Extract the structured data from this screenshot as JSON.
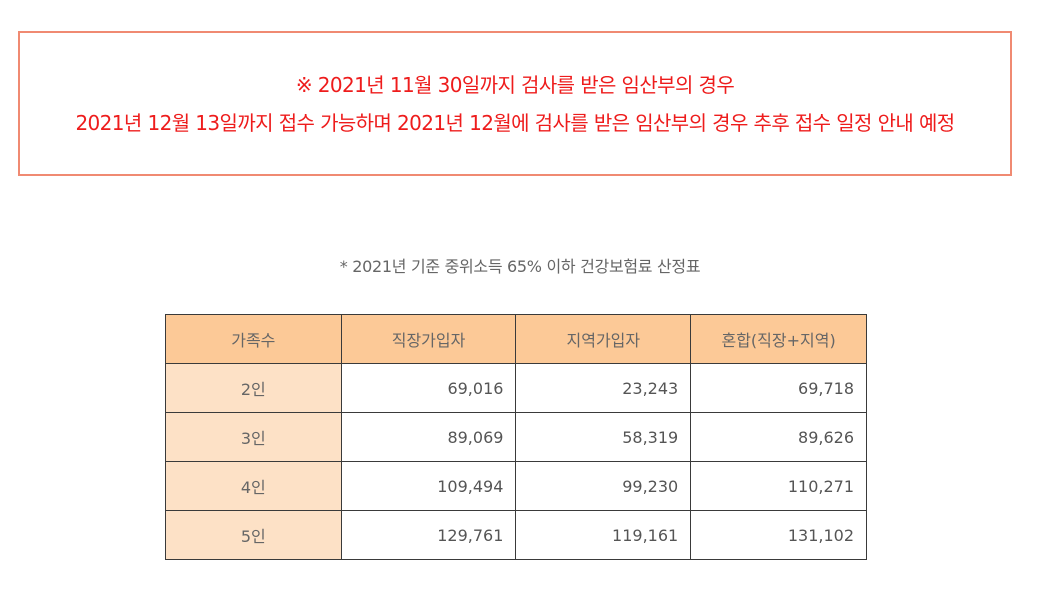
{
  "notice": {
    "line1": "※ 2021년 11월 30일까지 검사를 받은 임산부의 경우",
    "line2": "2021년 12월 13일까지 접수 가능하며 2021년 12월에 검사를 받은 임산부의 경우 추후 접수 일정 안내 예정",
    "text_color": "#ee1c1c",
    "border_color": "#f08a72"
  },
  "table_caption": "* 2021년 기준 중위소득 65% 이하 건강보험료 산정표",
  "table": {
    "header_color": "#fcc997",
    "first_col_color": "#fde1c6",
    "headers": [
      "가족수",
      "직장가입자",
      "지역가입자",
      "혼합(직장+지역)"
    ],
    "rows": [
      [
        "2인",
        "69,016",
        "23,243",
        "69,718"
      ],
      [
        "3인",
        "89,069",
        "58,319",
        "89,626"
      ],
      [
        "4인",
        "109,494",
        "99,230",
        "110,271"
      ],
      [
        "5인",
        "129,761",
        "119,161",
        "131,102"
      ]
    ]
  }
}
